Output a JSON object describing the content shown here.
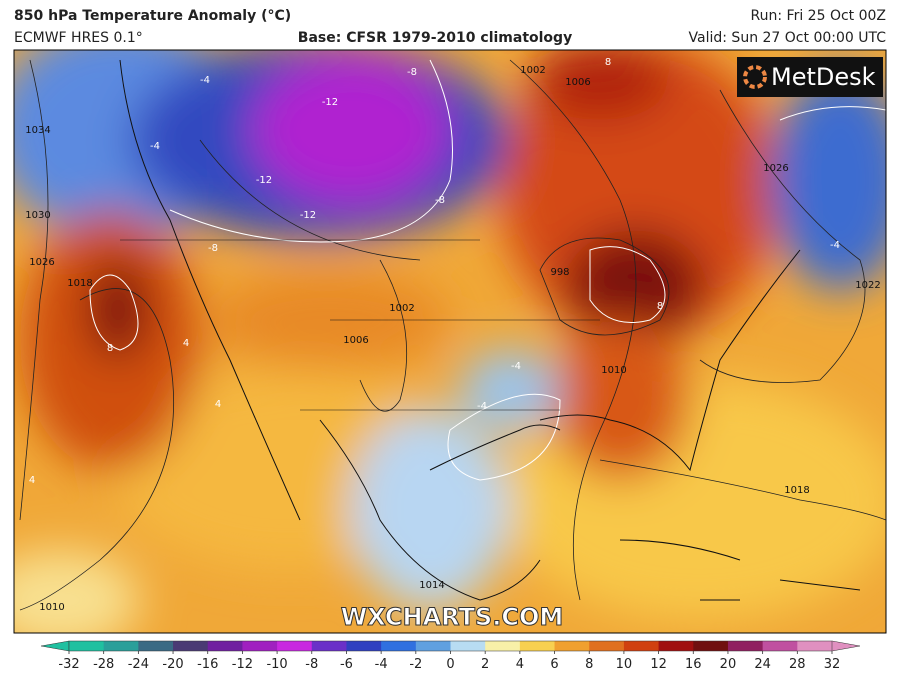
{
  "header": {
    "title": "850 hPa Temperature Anomaly (°C)",
    "model": "ECMWF HRES 0.1°",
    "base": "Base: CFSR 1979-2010 climatology",
    "run": "Run: Fri 25 Oct 00Z",
    "valid": "Valid: Sun 27 Oct 00:00 UTC"
  },
  "logo": "MetDesk",
  "watermark": "WXCHARTS.COM",
  "map": {
    "pressure_labels": [
      "1034",
      "1030",
      "1026",
      "1018",
      "1010",
      "1002",
      "1006",
      "1006",
      "1002",
      "998",
      "1010",
      "1014",
      "1018",
      "1022",
      "1026"
    ],
    "anomaly_labels": [
      "-4",
      "-4",
      "-8",
      "-12",
      "-12",
      "-8",
      "-12",
      "-8",
      "8",
      "8",
      "4",
      "4",
      "-4",
      "-4",
      "8",
      "-4",
      "4"
    ]
  },
  "colorbar": {
    "ticks": [
      -32,
      -28,
      -24,
      -20,
      -16,
      -12,
      -10,
      -8,
      -6,
      -4,
      -2,
      0,
      2,
      4,
      6,
      8,
      10,
      12,
      16,
      20,
      24,
      28,
      32
    ],
    "colors": [
      "#20c0a0",
      "#2a9f9a",
      "#3a6a84",
      "#4a3a74",
      "#7020a0",
      "#a020c0",
      "#c828e0",
      "#6a30c8",
      "#3040c0",
      "#3070e0",
      "#60a0e0",
      "#b8dcf2",
      "#f8f0a8",
      "#f8d050",
      "#f0a030",
      "#e07020",
      "#d04010",
      "#a01010",
      "#701010",
      "#902060",
      "#c050a0",
      "#e090c0"
    ]
  }
}
